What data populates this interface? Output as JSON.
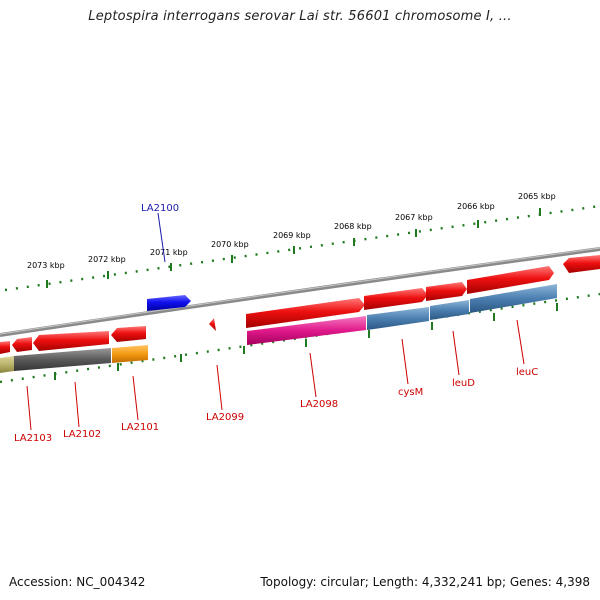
{
  "title": "Leptospira interrogans serovar Lai str. 56601 chromosome I, ...",
  "footer": {
    "accession": "Accession: NC_004342",
    "topology": "Topology: circular; Length: 4,332,241 bp; Genes: 4,398"
  },
  "colors": {
    "forward_gene": "#e81010",
    "gene_label": "#cc0000",
    "reverse_gene_highlight": "#1414e6",
    "highlight_label": "#1a1aaa",
    "scale_ticks": "#1f7a1f",
    "backbone": "#7a7a7a",
    "feature_pink": "#e0198a",
    "feature_steelblue": "#4b7fb0",
    "feature_gray": "#5a5a5a",
    "feature_orange": "#f59a12",
    "feature_olive": "#b9b36a"
  },
  "scale_labels": [
    "2073 kbp",
    "2072 kbp",
    "2071 kbp",
    "2070 kbp",
    "2069 kbp",
    "2068 kbp",
    "2067 kbp",
    "2066 kbp",
    "2065 kbp"
  ],
  "gene_labels": [
    "LA2103",
    "LA2102",
    "LA2101",
    "LA2099",
    "LA2098",
    "cysM",
    "leuD",
    "leuC",
    "LA2100"
  ]
}
